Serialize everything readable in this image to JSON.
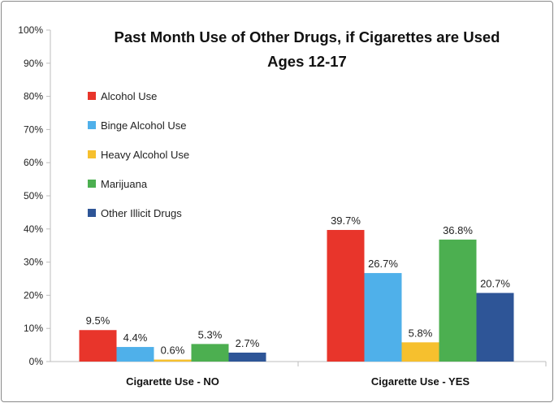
{
  "chart_data": {
    "type": "bar",
    "title": "Past Month Use of Other Drugs, if Cigarettes are Used",
    "subtitle": "Ages 12-17",
    "xlabel": "",
    "ylabel": "",
    "ylim": [
      0,
      100
    ],
    "yticks": [
      "0%",
      "10%",
      "20%",
      "30%",
      "40%",
      "50%",
      "60%",
      "70%",
      "80%",
      "90%",
      "100%"
    ],
    "grid": false,
    "legend_position": "top-left",
    "categories": [
      "Cigarette Use - NO",
      "Cigarette Use - YES"
    ],
    "series": [
      {
        "name": "Alcohol Use",
        "color": "#e8352b",
        "values": [
          9.5,
          39.7
        ],
        "labels": [
          "9.5%",
          "39.7%"
        ]
      },
      {
        "name": "Binge Alcohol Use",
        "color": "#4fb0ea",
        "values": [
          4.4,
          26.7
        ],
        "labels": [
          "4.4%",
          "26.7%"
        ]
      },
      {
        "name": "Heavy Alcohol Use",
        "color": "#f6c02e",
        "values": [
          0.6,
          5.8
        ],
        "labels": [
          "0.6%",
          "5.8%"
        ]
      },
      {
        "name": "Marijuana",
        "color": "#4caf50",
        "values": [
          5.3,
          36.8
        ],
        "labels": [
          "5.3%",
          "36.8%"
        ]
      },
      {
        "name": "Other Illicit Drugs",
        "color": "#2e5597",
        "values": [
          2.7,
          20.7
        ],
        "labels": [
          "2.7%",
          "20.7%"
        ]
      }
    ]
  }
}
